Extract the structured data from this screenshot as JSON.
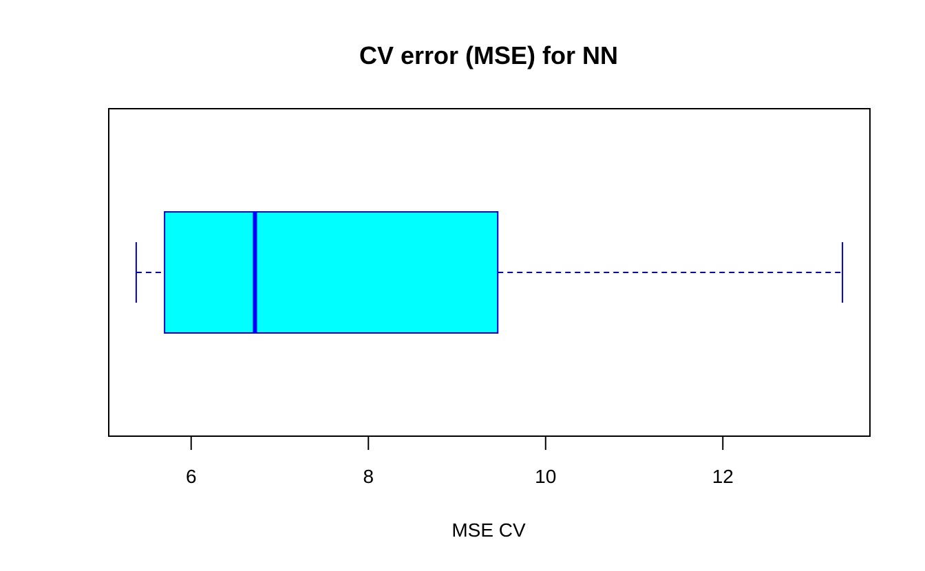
{
  "chart_data": {
    "type": "boxplot",
    "title": "CV error (MSE) for NN",
    "xlabel": "MSE CV",
    "orientation": "horizontal",
    "xlim": [
      5.07,
      13.66
    ],
    "xticks": [
      6,
      8,
      10,
      12
    ],
    "xtick_labels": [
      "6",
      "8",
      "10",
      "12"
    ],
    "box": {
      "min": 5.38,
      "q1": 5.7,
      "median": 6.72,
      "q3": 9.46,
      "max": 13.35
    },
    "colors": {
      "box_fill": "#00FFFF",
      "box_border": "#0000CD",
      "median": "#0000FF",
      "whisker": "#0000CD"
    },
    "grid": false,
    "legend": "none"
  }
}
